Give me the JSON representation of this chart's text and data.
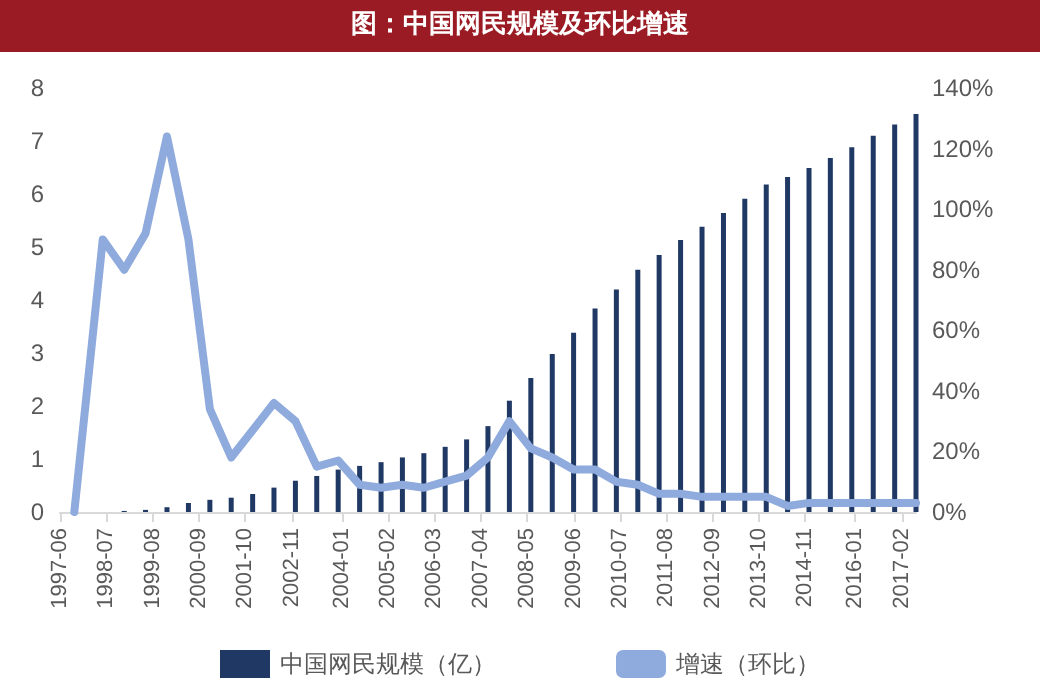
{
  "chart_data": {
    "type": "bar",
    "title": "图：中国网民规模及环比增速",
    "x": [
      "1997-10",
      "1998-06",
      "1998-12",
      "1999-06",
      "1999-12",
      "2000-06",
      "2000-12",
      "2001-06",
      "2001-12",
      "2002-06",
      "2002-12",
      "2003-06",
      "2003-12",
      "2004-06",
      "2004-12",
      "2005-06",
      "2005-12",
      "2006-06",
      "2006-12",
      "2007-06",
      "2007-12",
      "2008-06",
      "2008-12",
      "2009-06",
      "2009-12",
      "2010-06",
      "2010-12",
      "2011-06",
      "2011-12",
      "2012-06",
      "2012-12",
      "2013-06",
      "2013-12",
      "2014-06",
      "2014-12",
      "2015-06",
      "2015-12",
      "2016-06",
      "2016-12",
      "2017-06"
    ],
    "series": [
      {
        "name": "中国网民规模（亿）",
        "color": "#1f3864",
        "values": [
          null,
          null,
          0.02,
          0.04,
          0.09,
          0.17,
          0.23,
          0.27,
          0.34,
          0.46,
          0.59,
          0.68,
          0.8,
          0.87,
          0.94,
          1.03,
          1.11,
          1.23,
          1.37,
          1.62,
          2.1,
          2.53,
          2.98,
          3.38,
          3.84,
          4.2,
          4.57,
          4.85,
          5.13,
          5.38,
          5.64,
          5.91,
          6.18,
          6.32,
          6.49,
          6.68,
          6.88,
          7.1,
          7.31,
          7.51
        ]
      },
      {
        "name": "增速（环比）",
        "type": "line",
        "axis": "y2",
        "color": "#8faadc",
        "values": [
          0,
          90,
          80,
          92,
          124,
          90,
          34,
          18,
          27,
          36,
          30,
          15,
          17,
          9,
          8,
          9,
          8,
          10,
          12,
          18,
          30,
          21,
          18,
          14,
          14,
          10,
          9,
          6,
          6,
          5,
          5,
          5,
          5,
          2,
          3,
          3,
          3,
          3,
          3,
          3
        ]
      }
    ],
    "xlim": [
      "1997-06",
      "2017-06"
    ],
    "xticks": [
      "1997-06",
      "1998-07",
      "1999-08",
      "2000-09",
      "2001-10",
      "2002-11",
      "2004-01",
      "2005-02",
      "2006-03",
      "2007-04",
      "2008-05",
      "2009-06",
      "2010-07",
      "2011-08",
      "2012-09",
      "2013-10",
      "2014-11",
      "2016-01",
      "2017-02"
    ],
    "ylim": [
      0,
      8
    ],
    "yticks": [
      0,
      1,
      2,
      3,
      4,
      5,
      6,
      7,
      8
    ],
    "y2lim": [
      0,
      140
    ],
    "y2ticks": [
      {
        "value": 0,
        "label": "0%"
      },
      {
        "value": 20,
        "label": "20%"
      },
      {
        "value": 40,
        "label": "40%"
      },
      {
        "value": 60,
        "label": "60%"
      },
      {
        "value": 80,
        "label": "80%"
      },
      {
        "value": 100,
        "label": "100%"
      },
      {
        "value": 120,
        "label": "120%"
      },
      {
        "value": 140,
        "label": "140%"
      }
    ],
    "grid": false,
    "legend": "bottom",
    "marker": "none",
    "line_style": "solid"
  }
}
